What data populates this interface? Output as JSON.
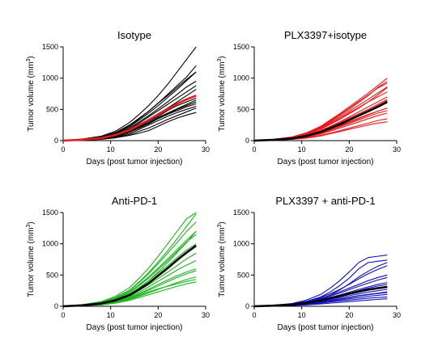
{
  "figure": {
    "ylabel_prefix": "Tumor volume (mm",
    "ylabel_sup": "3",
    "ylabel_suffix": ")"
  },
  "chart_data": [
    {
      "type": "line",
      "title": "Isotype",
      "xlabel": "Days (post tumor injection)",
      "ylabel": "Tumor volume (mm3)",
      "xlim": [
        0,
        30
      ],
      "ylim": [
        0,
        1500
      ],
      "xticks": [
        0,
        10,
        20,
        30
      ],
      "yticks": [
        0,
        500,
        1000,
        1500
      ],
      "individual_color": "#000000",
      "mean_color": "#e41a1c",
      "x": [
        0,
        4,
        8,
        11,
        14,
        16,
        18,
        20,
        22,
        24,
        26,
        28
      ],
      "mean": [
        0,
        15,
        40,
        90,
        170,
        250,
        330,
        420,
        500,
        590,
        660,
        720
      ],
      "series": [
        {
          "values": [
            0,
            8,
            20,
            45,
            85,
            120,
            160,
            230,
            300,
            360,
            410,
            450
          ]
        },
        {
          "values": [
            0,
            10,
            30,
            70,
            140,
            210,
            280,
            360,
            430,
            500,
            560,
            620
          ]
        },
        {
          "values": [
            0,
            20,
            55,
            120,
            230,
            330,
            440,
            560,
            690,
            820,
            960,
            1100
          ]
        },
        {
          "values": [
            0,
            25,
            70,
            150,
            290,
            420,
            560,
            720,
            900,
            1100,
            1300,
            1500
          ]
        },
        {
          "values": [
            0,
            15,
            40,
            85,
            170,
            250,
            330,
            430,
            520,
            620,
            720,
            820
          ]
        },
        {
          "values": [
            0,
            12,
            35,
            75,
            150,
            220,
            290,
            370,
            440,
            510,
            580,
            650
          ]
        },
        {
          "values": [
            0,
            10,
            25,
            60,
            120,
            180,
            250,
            320,
            390,
            450,
            500,
            550
          ]
        },
        {
          "values": [
            0,
            18,
            50,
            110,
            210,
            300,
            400,
            510,
            620,
            740,
            860,
            950
          ]
        },
        {
          "values": [
            0,
            22,
            60,
            130,
            250,
            360,
            470,
            600,
            720,
            850,
            980,
            1100
          ]
        },
        {
          "values": [
            0,
            14,
            38,
            80,
            160,
            230,
            310,
            390,
            480,
            560,
            620,
            680
          ]
        },
        {
          "values": [
            0,
            9,
            22,
            50,
            100,
            150,
            200,
            270,
            340,
            400,
            460,
            520
          ]
        },
        {
          "values": [
            0,
            16,
            45,
            100,
            190,
            280,
            380,
            480,
            580,
            680,
            780,
            880
          ]
        },
        {
          "values": [
            0,
            13,
            33,
            70,
            140,
            200,
            270,
            350,
            420,
            480,
            540,
            590
          ]
        },
        {
          "values": [
            0,
            20,
            58,
            125,
            240,
            350,
            470,
            600,
            740,
            880,
            1020,
            1200
          ]
        }
      ]
    },
    {
      "type": "line",
      "title": "PLX3397+isotype",
      "xlabel": "Days (post tumor injection)",
      "ylabel": "Tumor volume (mm3)",
      "xlim": [
        0,
        30
      ],
      "ylim": [
        0,
        1500
      ],
      "xticks": [
        0,
        10,
        20,
        30
      ],
      "yticks": [
        0,
        500,
        1000,
        1500
      ],
      "individual_color": "#e41a1c",
      "mean_color": "#000000",
      "x": [
        0,
        4,
        8,
        11,
        14,
        16,
        18,
        20,
        22,
        24,
        26,
        28
      ],
      "mean": [
        0,
        12,
        35,
        75,
        140,
        200,
        260,
        330,
        400,
        470,
        540,
        620
      ],
      "series": [
        {
          "values": [
            0,
            8,
            22,
            45,
            85,
            120,
            160,
            200,
            240,
            280,
            320,
            350
          ]
        },
        {
          "values": [
            0,
            10,
            30,
            65,
            120,
            170,
            230,
            290,
            350,
            410,
            470,
            520
          ]
        },
        {
          "values": [
            0,
            15,
            45,
            95,
            180,
            260,
            340,
            430,
            520,
            620,
            730,
            850
          ]
        },
        {
          "values": [
            0,
            18,
            55,
            115,
            210,
            300,
            400,
            500,
            610,
            720,
            850,
            950
          ]
        },
        {
          "values": [
            0,
            12,
            35,
            75,
            140,
            200,
            270,
            340,
            410,
            480,
            560,
            640
          ]
        },
        {
          "values": [
            0,
            9,
            25,
            55,
            105,
            150,
            200,
            250,
            300,
            350,
            400,
            440
          ]
        },
        {
          "values": [
            0,
            14,
            40,
            85,
            160,
            230,
            300,
            380,
            460,
            540,
            620,
            700
          ]
        },
        {
          "values": [
            0,
            20,
            60,
            125,
            230,
            330,
            430,
            540,
            650,
            760,
            880,
            1000
          ]
        },
        {
          "values": [
            0,
            11,
            32,
            70,
            130,
            185,
            240,
            300,
            360,
            420,
            470,
            520
          ]
        },
        {
          "values": [
            0,
            16,
            48,
            100,
            190,
            270,
            355,
            445,
            530,
            620,
            700,
            780
          ]
        },
        {
          "values": [
            0,
            7,
            20,
            40,
            75,
            110,
            145,
            180,
            215,
            250,
            280,
            300
          ]
        },
        {
          "values": [
            0,
            13,
            38,
            80,
            150,
            215,
            285,
            360,
            430,
            500,
            580,
            660
          ]
        },
        {
          "values": [
            0,
            17,
            50,
            105,
            200,
            285,
            375,
            470,
            565,
            660,
            760,
            860
          ]
        },
        {
          "values": [
            0,
            10,
            28,
            60,
            115,
            165,
            220,
            275,
            330,
            385,
            440,
            480
          ]
        },
        {
          "values": [
            0,
            19,
            58,
            120,
            220,
            315,
            415,
            520,
            625,
            730,
            840,
            920
          ]
        }
      ]
    },
    {
      "type": "line",
      "title": "Anti-PD-1",
      "xlabel": "Days (post tumor injection)",
      "ylabel": "Tumor volume (mm3)",
      "xlim": [
        0,
        30
      ],
      "ylim": [
        0,
        1500
      ],
      "xticks": [
        0,
        10,
        20,
        30
      ],
      "yticks": [
        0,
        500,
        1000,
        1500
      ],
      "individual_color": "#1db31d",
      "mean_color": "#000000",
      "x": [
        0,
        4,
        8,
        11,
        14,
        16,
        18,
        20,
        22,
        24,
        26,
        28
      ],
      "mean": [
        0,
        15,
        45,
        95,
        180,
        270,
        370,
        490,
        610,
        740,
        860,
        970
      ],
      "series": [
        {
          "values": [
            0,
            10,
            30,
            65,
            120,
            175,
            230,
            280,
            320,
            360,
            400,
            430
          ]
        },
        {
          "values": [
            0,
            15,
            45,
            100,
            190,
            290,
            410,
            550,
            700,
            860,
            1020,
            1200
          ]
        },
        {
          "values": [
            0,
            22,
            65,
            140,
            260,
            390,
            540,
            710,
            890,
            1080,
            1280,
            1480
          ]
        },
        {
          "values": [
            0,
            25,
            75,
            160,
            300,
            450,
            610,
            800,
            1000,
            1200,
            1400,
            1500
          ]
        },
        {
          "values": [
            0,
            12,
            35,
            75,
            140,
            205,
            275,
            350,
            420,
            490,
            550,
            600
          ]
        },
        {
          "values": [
            0,
            18,
            55,
            115,
            220,
            330,
            450,
            590,
            730,
            880,
            1030,
            1150
          ]
        },
        {
          "values": [
            0,
            8,
            22,
            50,
            95,
            140,
            185,
            230,
            275,
            320,
            360,
            390
          ]
        },
        {
          "values": [
            0,
            14,
            42,
            90,
            170,
            255,
            345,
            445,
            545,
            650,
            760,
            850
          ]
        },
        {
          "values": [
            0,
            20,
            60,
            130,
            250,
            380,
            520,
            680,
            850,
            1020,
            1200,
            1350
          ]
        },
        {
          "values": [
            0,
            11,
            33,
            70,
            130,
            190,
            255,
            325,
            395,
            460,
            520,
            570
          ]
        },
        {
          "values": [
            0,
            16,
            48,
            105,
            200,
            300,
            410,
            530,
            650,
            780,
            900,
            1000
          ]
        },
        {
          "values": [
            0,
            9,
            27,
            58,
            110,
            160,
            215,
            270,
            325,
            380,
            430,
            470
          ]
        },
        {
          "values": [
            0,
            19,
            57,
            120,
            230,
            345,
            470,
            610,
            760,
            910,
            1060,
            1200
          ]
        },
        {
          "values": [
            0,
            13,
            38,
            82,
            155,
            230,
            310,
            400,
            490,
            580,
            660,
            730
          ]
        }
      ]
    },
    {
      "type": "line",
      "title": "PLX3397 + anti-PD-1",
      "xlabel": "Days (post tumor injection)",
      "ylabel": "Tumor volume (mm3)",
      "xlim": [
        0,
        30
      ],
      "ylim": [
        0,
        1500
      ],
      "xticks": [
        0,
        10,
        20,
        30
      ],
      "yticks": [
        0,
        500,
        1000,
        1500
      ],
      "individual_color": "#1010b8",
      "mean_color": "#000000",
      "x": [
        0,
        4,
        8,
        11,
        14,
        16,
        18,
        20,
        22,
        24,
        26,
        28
      ],
      "mean": [
        0,
        10,
        28,
        55,
        95,
        130,
        165,
        200,
        235,
        265,
        290,
        310
      ],
      "series": [
        {
          "values": [
            0,
            5,
            12,
            22,
            38,
            50,
            62,
            75,
            88,
            100,
            110,
            120
          ]
        },
        {
          "values": [
            0,
            10,
            30,
            65,
            120,
            180,
            260,
            360,
            470,
            560,
            640,
            700
          ]
        },
        {
          "values": [
            0,
            12,
            35,
            80,
            150,
            230,
            330,
            450,
            600,
            700,
            720,
            740
          ]
        },
        {
          "values": [
            0,
            15,
            45,
            100,
            190,
            290,
            410,
            550,
            700,
            780,
            800,
            820
          ]
        },
        {
          "values": [
            0,
            8,
            20,
            40,
            70,
            95,
            120,
            145,
            170,
            190,
            210,
            230
          ]
        },
        {
          "values": [
            0,
            9,
            25,
            50,
            90,
            125,
            160,
            195,
            230,
            260,
            290,
            310
          ]
        },
        {
          "values": [
            0,
            7,
            18,
            35,
            60,
            80,
            100,
            120,
            140,
            160,
            175,
            190
          ]
        },
        {
          "values": [
            0,
            11,
            32,
            65,
            115,
            160,
            210,
            265,
            320,
            370,
            420,
            460
          ]
        },
        {
          "values": [
            0,
            6,
            15,
            30,
            50,
            68,
            85,
            100,
            115,
            130,
            140,
            150
          ]
        },
        {
          "values": [
            0,
            10,
            28,
            58,
            100,
            140,
            180,
            225,
            270,
            310,
            350,
            380
          ]
        },
        {
          "values": [
            0,
            13,
            38,
            78,
            140,
            200,
            270,
            350,
            440,
            520,
            590,
            650
          ]
        },
        {
          "values": [
            0,
            8,
            22,
            45,
            80,
            110,
            140,
            170,
            200,
            225,
            250,
            270
          ]
        },
        {
          "values": [
            0,
            9,
            26,
            52,
            92,
            130,
            170,
            210,
            250,
            290,
            325,
            350
          ]
        },
        {
          "values": [
            0,
            7,
            19,
            38,
            65,
            90,
            115,
            140,
            165,
            185,
            205,
            220
          ]
        },
        {
          "values": [
            0,
            12,
            34,
            70,
            125,
            175,
            230,
            290,
            350,
            410,
            460,
            500
          ]
        }
      ]
    }
  ]
}
